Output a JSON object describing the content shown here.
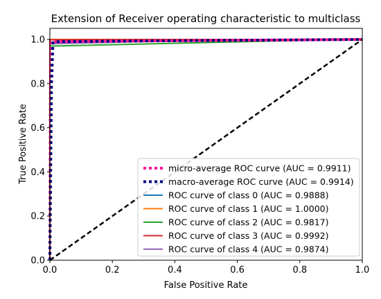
{
  "chart_data": {
    "type": "line",
    "title": "Extension of Receiver operating characteristic to multiclass",
    "xlabel": "False Positive Rate",
    "ylabel": "True Positive Rate",
    "xlim": [
      0.0,
      1.0
    ],
    "ylim": [
      0.0,
      1.05
    ],
    "xticks": [
      "0.0",
      "0.2",
      "0.4",
      "0.6",
      "0.8",
      "1.0"
    ],
    "yticks": [
      "0.0",
      "0.2",
      "0.4",
      "0.6",
      "0.8",
      "1.0"
    ],
    "grid": false,
    "legend_position": "lower right",
    "series": [
      {
        "name": "micro-average ROC curve (AUC = 0.9911)",
        "color": "#ff1493",
        "style": "dotted",
        "points": [
          [
            0.0,
            0.0
          ],
          [
            0.002,
            0.985
          ],
          [
            0.01,
            0.99
          ],
          [
            0.1,
            0.991
          ],
          [
            0.5,
            0.995
          ],
          [
            1.0,
            1.0
          ]
        ]
      },
      {
        "name": "macro-average ROC curve (AUC = 0.9914)",
        "color": "#000080",
        "style": "dotted",
        "points": [
          [
            0.0,
            0.0
          ],
          [
            0.005,
            0.8
          ],
          [
            0.01,
            0.985
          ],
          [
            0.02,
            0.99
          ],
          [
            0.5,
            0.995
          ],
          [
            1.0,
            1.0
          ]
        ]
      },
      {
        "name": "ROC curve of class 0 (AUC = 0.9888)",
        "color": "#1f77b4",
        "style": "solid",
        "points": [
          [
            0.0,
            0.0
          ],
          [
            0.0,
            0.985
          ],
          [
            0.01,
            0.985
          ],
          [
            0.2,
            0.99
          ],
          [
            1.0,
            1.0
          ]
        ]
      },
      {
        "name": "ROC curve of class 1 (AUC = 1.0000)",
        "color": "#ff7f0e",
        "style": "solid",
        "points": [
          [
            0.0,
            0.0
          ],
          [
            0.0,
            1.0
          ],
          [
            1.0,
            1.0
          ]
        ]
      },
      {
        "name": "ROC curve of class 2 (AUC = 0.9817)",
        "color": "#2ca02c",
        "style": "solid",
        "points": [
          [
            0.0,
            0.0
          ],
          [
            0.0,
            0.97
          ],
          [
            0.01,
            0.97
          ],
          [
            0.8,
            0.995
          ],
          [
            1.0,
            1.0
          ]
        ]
      },
      {
        "name": "ROC curve of class 3 (AUC = 0.9992)",
        "color": "#d62728",
        "style": "solid",
        "points": [
          [
            0.0,
            0.0
          ],
          [
            0.0,
            0.998
          ],
          [
            0.02,
            0.999
          ],
          [
            1.0,
            1.0
          ]
        ]
      },
      {
        "name": "ROC curve of class 4 (AUC = 0.9874)",
        "color": "#9467bd",
        "style": "solid",
        "points": [
          [
            0.0,
            0.0
          ],
          [
            0.0,
            0.98
          ],
          [
            0.01,
            0.98
          ],
          [
            0.3,
            0.99
          ],
          [
            1.0,
            1.0
          ]
        ]
      }
    ],
    "reference_line": {
      "color": "#000000",
      "style": "dashed",
      "points": [
        [
          0.0,
          0.0
        ],
        [
          1.0,
          1.0
        ]
      ]
    }
  }
}
